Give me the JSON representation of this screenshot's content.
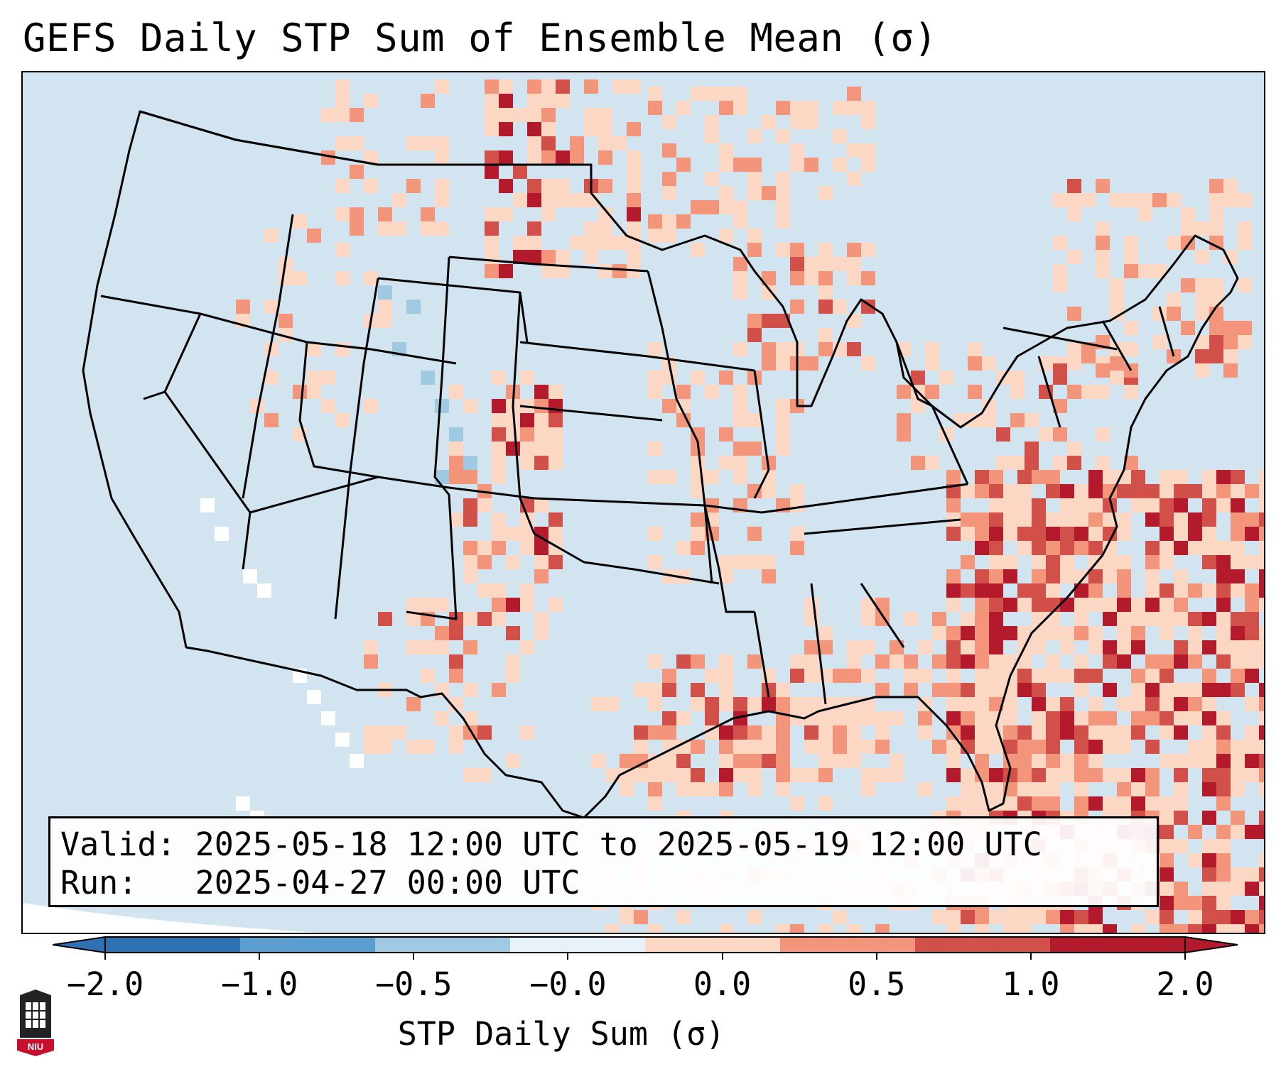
{
  "title": "GEFS Daily STP Sum of Ensemble Mean (σ)",
  "info": {
    "valid": "Valid: 2025-05-18 12:00 UTC to 2025-05-19 12:00 UTC",
    "run": "Run:   2025-04-27 00:00 UTC"
  },
  "colorbar": {
    "label": "STP Daily Sum (σ)",
    "ticks": [
      "−2.0",
      "−1.0",
      "−0.5",
      "−0.0",
      "0.0",
      "0.5",
      "1.0",
      "2.0"
    ],
    "bin_colors": [
      "#2f72b4",
      "#5a9ed0",
      "#9fcae2",
      "#e8f1f7",
      "#fcd7c4",
      "#f2957a",
      "#d2504a",
      "#b31b2c"
    ],
    "over_color": "#b31b2c",
    "under_color": "#2f72b4"
  },
  "logo": {
    "text": "NIU"
  },
  "colors": {
    "ocean": "#d1e4f0",
    "land": "#d1e4f0",
    "border": "#000000"
  }
}
